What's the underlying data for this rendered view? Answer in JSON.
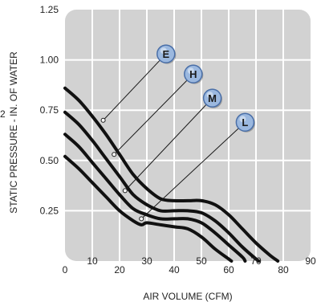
{
  "chart_data": {
    "type": "line",
    "xlabel": "AIR VOLUME (CFM)",
    "ylabel": "STATIC PRESSURE - IN. OF WATER",
    "xlim": [
      0,
      90
    ],
    "ylim": [
      0,
      1.25
    ],
    "x_ticks": [
      "0",
      "10",
      "20",
      "30",
      "40",
      "50",
      "60",
      "70",
      "80",
      "90"
    ],
    "y_ticks": [
      "0.25",
      "0.50",
      "0.75",
      "1.00",
      "1.25"
    ],
    "grid": true,
    "series": [
      {
        "name": "E",
        "points": [
          [
            0,
            0.86
          ],
          [
            5,
            0.8
          ],
          [
            10,
            0.72
          ],
          [
            15,
            0.63
          ],
          [
            20,
            0.53
          ],
          [
            25,
            0.43
          ],
          [
            30,
            0.36
          ],
          [
            35,
            0.31
          ],
          [
            40,
            0.3
          ],
          [
            45,
            0.3
          ],
          [
            50,
            0.3
          ],
          [
            55,
            0.28
          ],
          [
            60,
            0.23
          ],
          [
            65,
            0.16
          ],
          [
            70,
            0.09
          ],
          [
            75,
            0.03
          ],
          [
            78,
            0.0
          ]
        ],
        "label_at": [
          14,
          0.7
        ]
      },
      {
        "name": "H",
        "points": [
          [
            0,
            0.74
          ],
          [
            5,
            0.68
          ],
          [
            10,
            0.6
          ],
          [
            15,
            0.51
          ],
          [
            20,
            0.42
          ],
          [
            25,
            0.33
          ],
          [
            30,
            0.28
          ],
          [
            35,
            0.25
          ],
          [
            40,
            0.25
          ],
          [
            45,
            0.25
          ],
          [
            50,
            0.24
          ],
          [
            55,
            0.2
          ],
          [
            60,
            0.14
          ],
          [
            65,
            0.07
          ],
          [
            70,
            0.01
          ],
          [
            71,
            0.0
          ]
        ],
        "label_at": [
          18,
          0.53
        ]
      },
      {
        "name": "M",
        "points": [
          [
            0,
            0.63
          ],
          [
            5,
            0.57
          ],
          [
            10,
            0.49
          ],
          [
            15,
            0.41
          ],
          [
            20,
            0.33
          ],
          [
            25,
            0.26
          ],
          [
            30,
            0.23
          ],
          [
            35,
            0.21
          ],
          [
            40,
            0.21
          ],
          [
            45,
            0.21
          ],
          [
            50,
            0.19
          ],
          [
            55,
            0.14
          ],
          [
            60,
            0.08
          ],
          [
            65,
            0.02
          ],
          [
            66,
            0.0
          ]
        ],
        "label_at": [
          22,
          0.35
        ]
      },
      {
        "name": "L",
        "points": [
          [
            0,
            0.52
          ],
          [
            5,
            0.46
          ],
          [
            10,
            0.39
          ],
          [
            15,
            0.32
          ],
          [
            20,
            0.25
          ],
          [
            25,
            0.2
          ],
          [
            28,
            0.18
          ],
          [
            30,
            0.19
          ],
          [
            35,
            0.18
          ],
          [
            40,
            0.17
          ],
          [
            45,
            0.16
          ],
          [
            50,
            0.12
          ],
          [
            55,
            0.06
          ],
          [
            60,
            0.01
          ],
          [
            61,
            0.0
          ]
        ],
        "label_at": [
          28,
          0.21
        ]
      }
    ],
    "badge_x": [
      37,
      47,
      54,
      66
    ],
    "badge_y": [
      1.03,
      0.93,
      0.81,
      0.69
    ],
    "colors": {
      "panel": "#d2d2d2",
      "grid": "#ffffff",
      "line": "#111111",
      "badge_fill": "#9bb8df",
      "badge_stroke": "#4a6fa8"
    }
  },
  "stray_label": "2"
}
